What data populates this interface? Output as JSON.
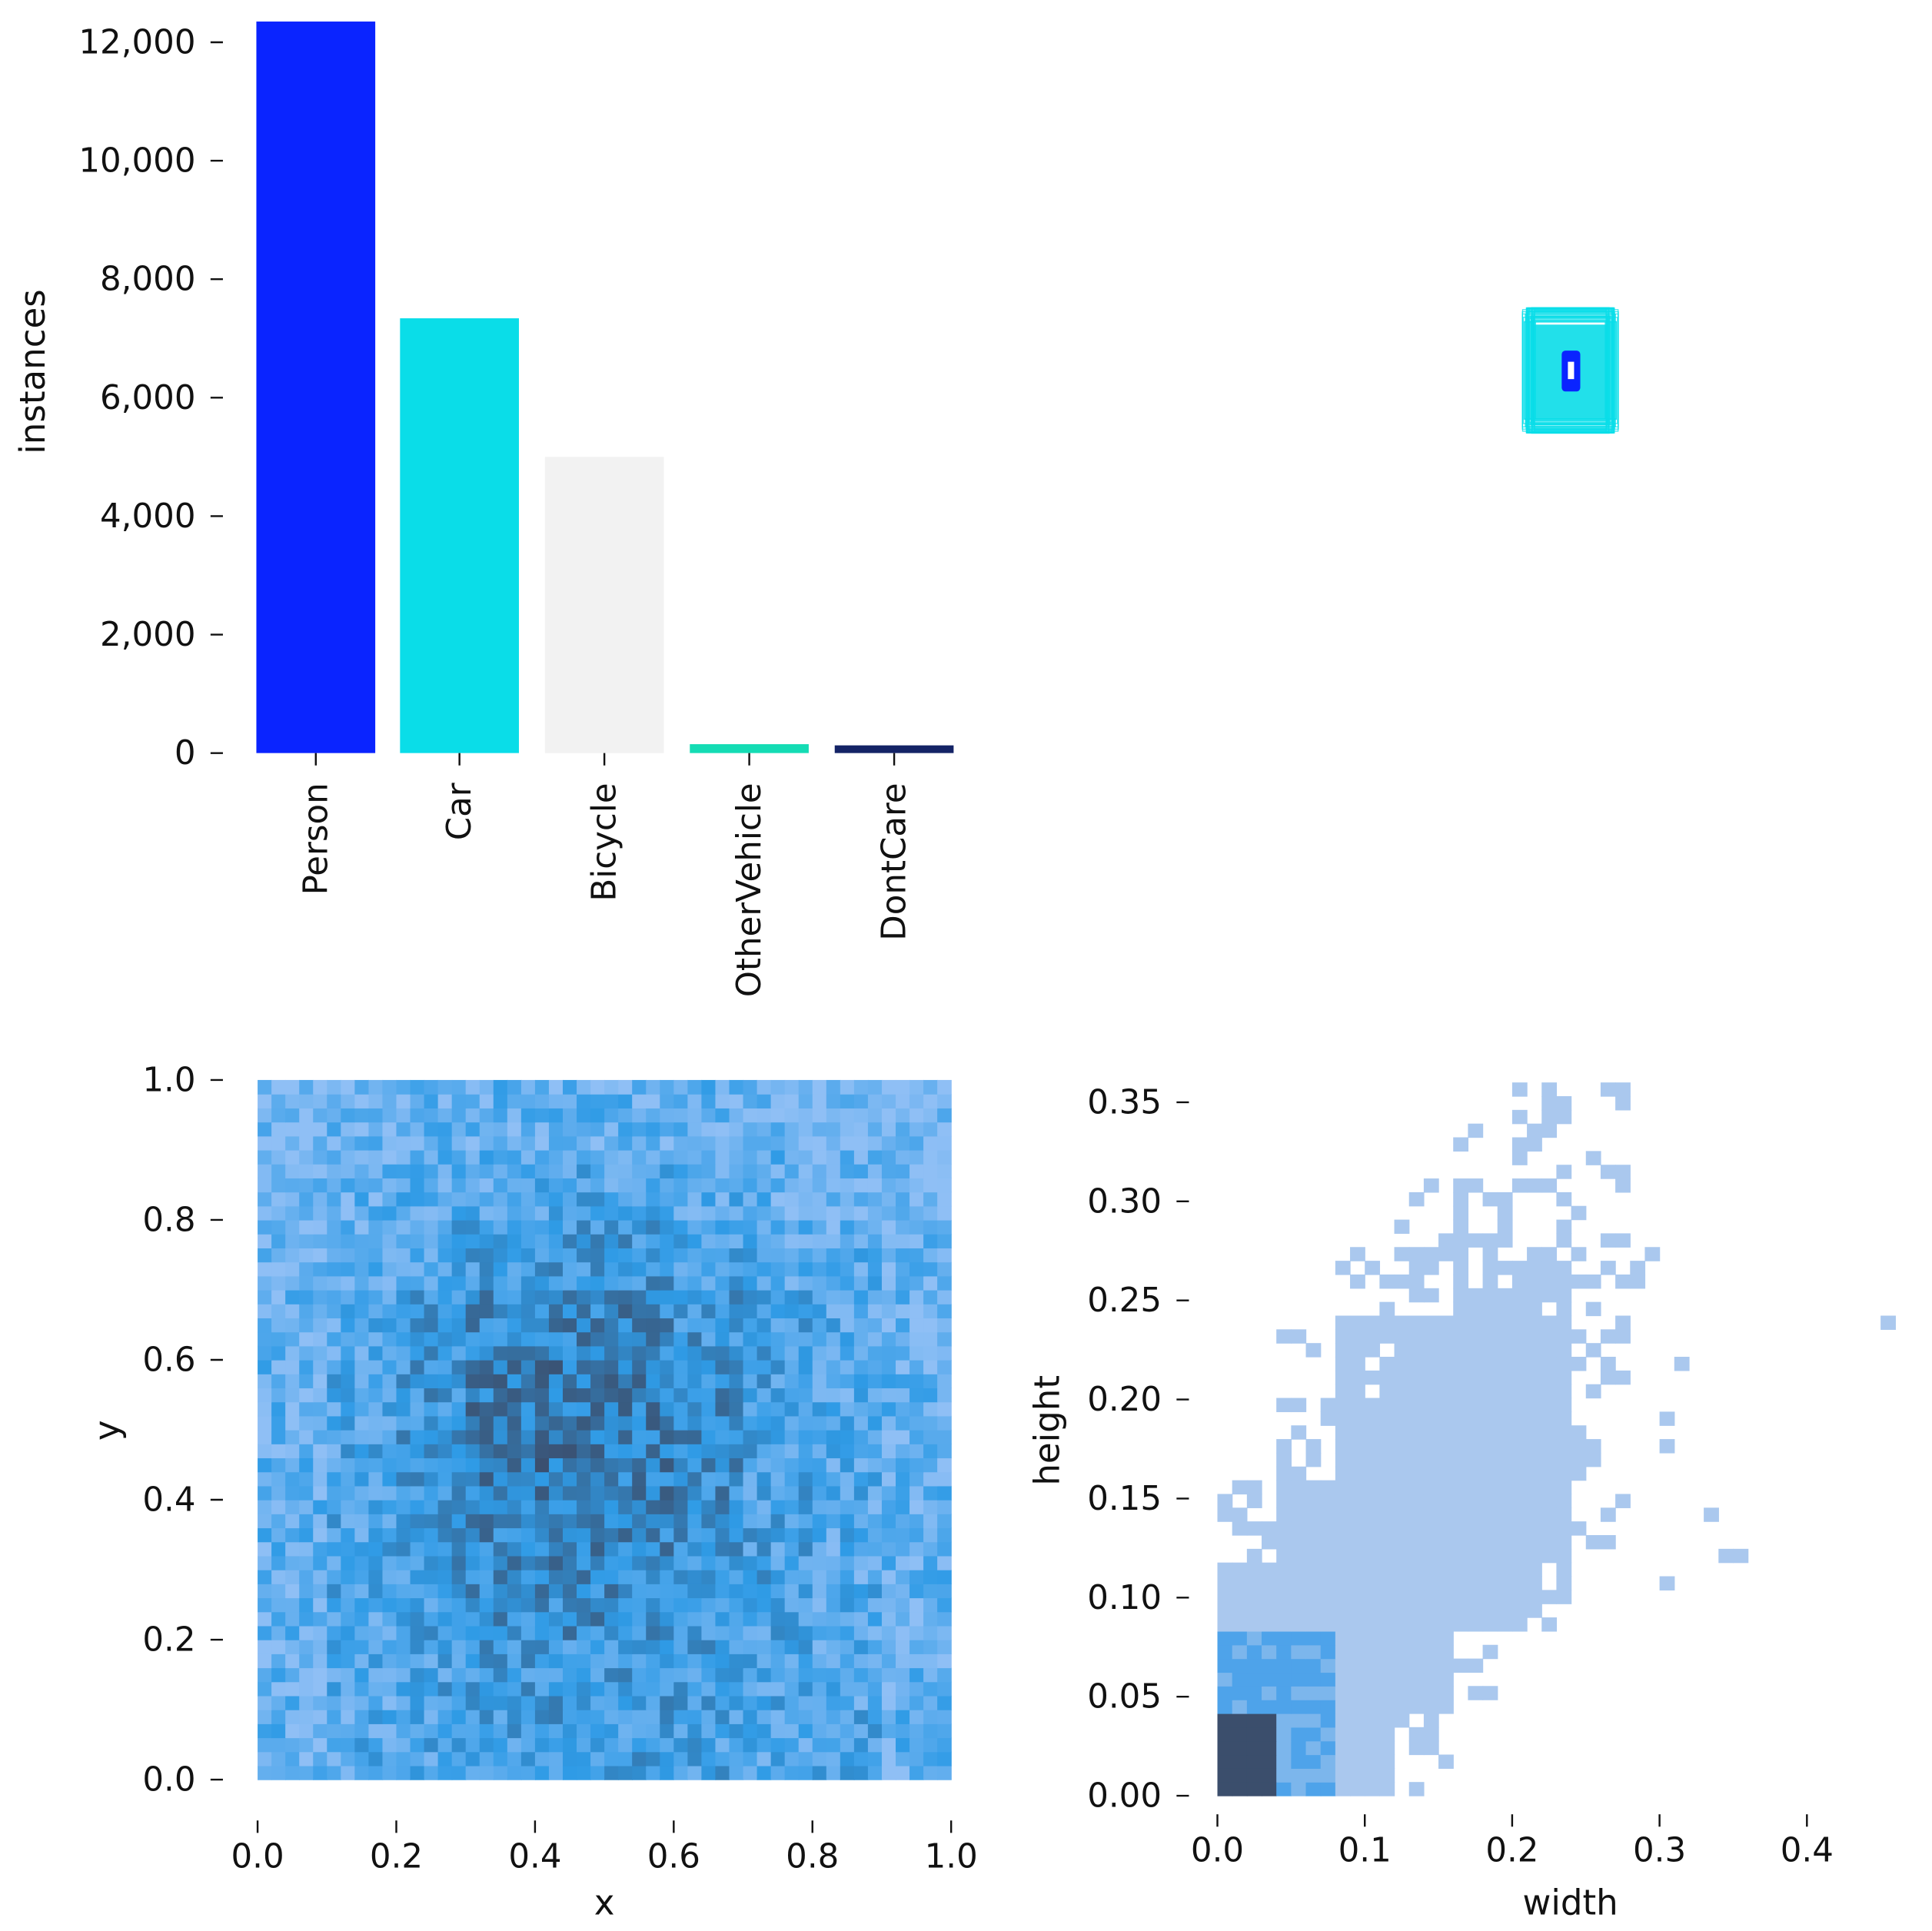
{
  "chart_data": [
    {
      "type": "bar",
      "categories": [
        "Person",
        "Car",
        "Bicycle",
        "OtherVehicle",
        "DontCare"
      ],
      "values": [
        12350,
        7340,
        5000,
        150,
        130
      ],
      "colors": [
        "#0a24ff",
        "#0adde8",
        "#f2f2f2",
        "#14dcb4",
        "#142366"
      ],
      "ylabel": "instances",
      "yticks": [
        0,
        2000,
        4000,
        6000,
        8000,
        10000,
        12000
      ],
      "ytick_labels": [
        "0",
        "2,000",
        "4,000",
        "6,000",
        "8,000",
        "10,000",
        "12,000"
      ],
      "ylim": [
        0,
        12400
      ],
      "grid": false
    },
    {
      "type": "box-overlay",
      "colors": [
        "#0a24ff",
        "#0adde8"
      ]
    },
    {
      "type": "heatmap",
      "xlabel": "x",
      "ylabel": "y",
      "xlim": [
        0,
        1
      ],
      "ylim": [
        0,
        1
      ],
      "xticks": [
        0,
        0.2,
        0.4,
        0.6,
        0.8,
        1.0
      ],
      "xtick_labels": [
        "0.0",
        "0.2",
        "0.4",
        "0.6",
        "0.8",
        "1.0"
      ],
      "yticks": [
        0,
        0.2,
        0.4,
        0.6,
        0.8,
        1.0
      ],
      "ytick_labels": [
        "0.0",
        "0.2",
        "0.4",
        "0.6",
        "0.8",
        "1.0"
      ],
      "colors": [
        "#8fbff5",
        "#2f9be6",
        "#3b4e6c"
      ],
      "density_rows_bottom_to_top": [
        [
          0.3,
          0.4,
          0.45,
          0.5,
          0.55,
          0.55,
          0.5,
          0.45,
          0.5,
          0.3
        ],
        [
          0.3,
          0.4,
          0.5,
          0.6,
          0.6,
          0.6,
          0.55,
          0.45,
          0.4,
          0.3
        ],
        [
          0.3,
          0.45,
          0.55,
          0.65,
          0.7,
          0.7,
          0.6,
          0.5,
          0.4,
          0.3
        ],
        [
          0.3,
          0.45,
          0.6,
          0.75,
          0.8,
          0.75,
          0.65,
          0.5,
          0.4,
          0.3
        ],
        [
          0.3,
          0.45,
          0.6,
          0.8,
          0.85,
          0.8,
          0.7,
          0.5,
          0.4,
          0.3
        ],
        [
          0.3,
          0.45,
          0.6,
          0.8,
          0.85,
          0.8,
          0.7,
          0.5,
          0.4,
          0.3
        ],
        [
          0.3,
          0.4,
          0.55,
          0.7,
          0.75,
          0.75,
          0.6,
          0.5,
          0.4,
          0.3
        ],
        [
          0.25,
          0.35,
          0.45,
          0.55,
          0.6,
          0.6,
          0.5,
          0.4,
          0.35,
          0.25
        ],
        [
          0.2,
          0.3,
          0.35,
          0.4,
          0.45,
          0.4,
          0.35,
          0.3,
          0.25,
          0.15
        ],
        [
          0.2,
          0.25,
          0.3,
          0.3,
          0.3,
          0.3,
          0.3,
          0.25,
          0.2,
          0.15
        ]
      ]
    },
    {
      "type": "heatmap",
      "xlabel": "width",
      "ylabel": "height",
      "xlim": [
        0,
        0.48
      ],
      "ylim": [
        0,
        0.36
      ],
      "xticks": [
        0,
        0.1,
        0.2,
        0.3,
        0.4
      ],
      "xtick_labels": [
        "0.0",
        "0.1",
        "0.2",
        "0.3",
        "0.4"
      ],
      "yticks": [
        0,
        0.05,
        0.1,
        0.15,
        0.2,
        0.25,
        0.3,
        0.35
      ],
      "ytick_labels": [
        "0.00",
        "0.05",
        "0.10",
        "0.15",
        "0.20",
        "0.25",
        "0.30",
        "0.35"
      ],
      "colors": [
        "#aac8ee",
        "#4ea3ea",
        "#3b4e6c"
      ],
      "density_rows_bottom_to_top": [
        [
          1.0,
          0.5,
          0.25,
          0.05,
          0,
          0,
          0,
          0,
          0,
          0,
          0,
          0
        ],
        [
          0.7,
          0.5,
          0.35,
          0.3,
          0.05,
          0,
          0,
          0,
          0,
          0,
          0,
          0
        ],
        [
          0.3,
          0.35,
          0.3,
          0.3,
          0.25,
          0.15,
          0,
          0.02,
          0,
          0,
          0,
          0
        ],
        [
          0.1,
          0.3,
          0.3,
          0.3,
          0.3,
          0.25,
          0.03,
          0,
          0.02,
          0,
          0,
          0
        ],
        [
          0,
          0.15,
          0.3,
          0.3,
          0.3,
          0.25,
          0.05,
          0.02,
          0,
          0,
          0,
          0
        ],
        [
          0,
          0.02,
          0.2,
          0.3,
          0.3,
          0.25,
          0.1,
          0.02,
          0,
          0,
          0,
          0.01
        ],
        [
          0,
          0,
          0.05,
          0.15,
          0.2,
          0.2,
          0.1,
          0.02,
          0,
          0,
          0,
          0
        ],
        [
          0,
          0,
          0,
          0.03,
          0.1,
          0.1,
          0.05,
          0,
          0,
          0,
          0,
          0
        ],
        [
          0,
          0,
          0,
          0,
          0.03,
          0.05,
          0.03,
          0,
          0,
          0,
          0,
          0
        ]
      ]
    }
  ]
}
